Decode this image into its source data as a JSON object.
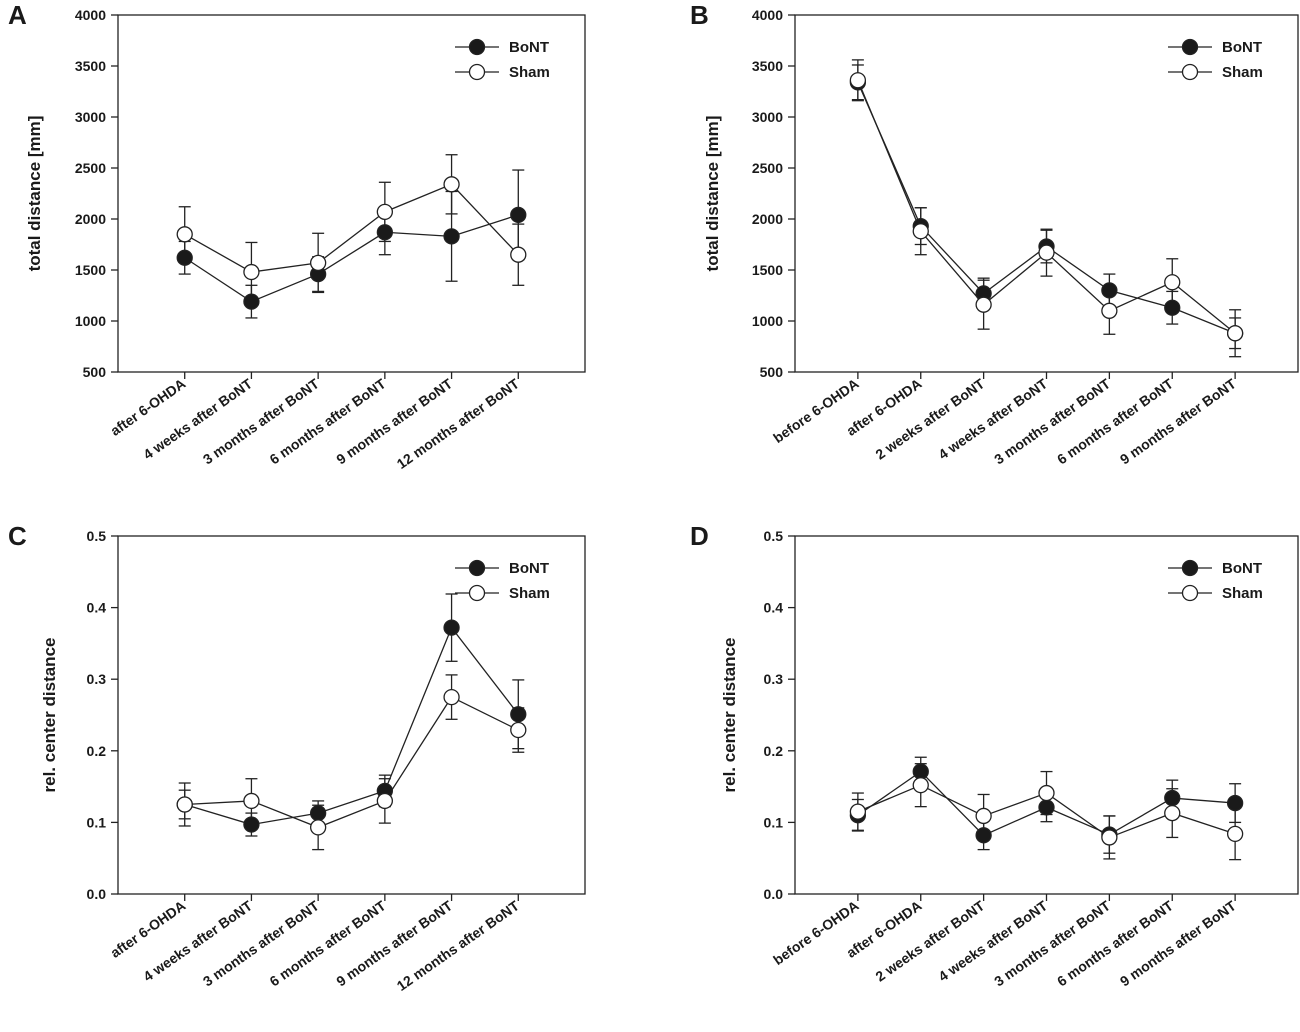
{
  "chart_data": [
    {
      "panel": "A",
      "type": "line",
      "ylabel": "total distance [mm]",
      "ylim": [
        500,
        4000
      ],
      "yticks": [
        500,
        1000,
        1500,
        2000,
        2500,
        3000,
        3500,
        4000
      ],
      "categories": [
        "after 6-OHDA",
        "4 weeks after BoNT",
        "3 months after BoNT",
        "6 months after BoNT",
        "9 months after BoNT",
        "12 months after BoNT"
      ],
      "series": [
        {
          "name": "BoNT",
          "marker": "filled",
          "values": [
            1620,
            1190,
            1460,
            1870,
            1830,
            2040
          ],
          "errors": [
            160,
            160,
            170,
            220,
            440,
            440
          ]
        },
        {
          "name": "Sham",
          "marker": "open",
          "values": [
            1850,
            1480,
            1570,
            2070,
            2340,
            1650
          ],
          "errors": [
            270,
            290,
            290,
            290,
            290,
            300
          ]
        }
      ],
      "legend": "top-right"
    },
    {
      "panel": "B",
      "type": "line",
      "ylabel": "total distance [mm]",
      "ylim": [
        500,
        4000
      ],
      "yticks": [
        500,
        1000,
        1500,
        2000,
        2500,
        3000,
        3500,
        4000
      ],
      "categories": [
        "before 6-OHDA",
        "after 6-OHDA",
        "2 weeks after BoNT",
        "4 weeks after BoNT",
        "3 months after BoNT",
        "6 months after BoNT",
        "9 months after BoNT"
      ],
      "series": [
        {
          "name": "BoNT",
          "marker": "filled",
          "values": [
            3340,
            1930,
            1270,
            1730,
            1300,
            1130,
            880
          ],
          "errors": [
            170,
            180,
            150,
            160,
            160,
            160,
            150
          ]
        },
        {
          "name": "Sham",
          "marker": "open",
          "values": [
            3360,
            1880,
            1160,
            1670,
            1100,
            1380,
            880
          ],
          "errors": [
            200,
            230,
            240,
            230,
            230,
            230,
            230
          ]
        }
      ],
      "legend": "top-right"
    },
    {
      "panel": "C",
      "type": "line",
      "ylabel": "rel. center distance",
      "ylim": [
        0.0,
        0.5
      ],
      "yticks": [
        0.0,
        0.1,
        0.2,
        0.3,
        0.4,
        0.5
      ],
      "categories": [
        "after 6-OHDA",
        "4 weeks after BoNT",
        "3 months after BoNT",
        "6 months after BoNT",
        "9 months after BoNT",
        "12 months after BoNT"
      ],
      "series": [
        {
          "name": "BoNT",
          "marker": "filled",
          "values": [
            0.125,
            0.097,
            0.113,
            0.144,
            0.372,
            0.251
          ],
          "errors": [
            0.02,
            0.016,
            0.017,
            0.022,
            0.047,
            0.048
          ]
        },
        {
          "name": "Sham",
          "marker": "open",
          "values": [
            0.125,
            0.13,
            0.093,
            0.13,
            0.275,
            0.229
          ],
          "errors": [
            0.03,
            0.031,
            0.031,
            0.031,
            0.031,
            0.031
          ]
        }
      ],
      "legend": "top-right"
    },
    {
      "panel": "D",
      "type": "line",
      "ylabel": "rel. center distance",
      "ylim": [
        0.0,
        0.5
      ],
      "yticks": [
        0.0,
        0.1,
        0.2,
        0.3,
        0.4,
        0.5
      ],
      "categories": [
        "before 6-OHDA",
        "after 6-OHDA",
        "2 weeks after BoNT",
        "4 weeks after BoNT",
        "3 months after BoNT",
        "6 months after BoNT",
        "9 months after BoNT"
      ],
      "series": [
        {
          "name": "BoNT",
          "marker": "filled",
          "values": [
            0.11,
            0.171,
            0.082,
            0.121,
            0.083,
            0.134,
            0.127
          ],
          "errors": [
            0.022,
            0.02,
            0.02,
            0.02,
            0.026,
            0.025,
            0.027
          ]
        },
        {
          "name": "Sham",
          "marker": "open",
          "values": [
            0.115,
            0.152,
            0.109,
            0.141,
            0.079,
            0.113,
            0.084
          ],
          "errors": [
            0.026,
            0.03,
            0.03,
            0.03,
            0.03,
            0.034,
            0.036
          ]
        }
      ],
      "legend": "top-right"
    }
  ],
  "colors": {
    "line": "#222222",
    "filled_marker": "#1a1a1a",
    "open_marker": "#ffffff"
  }
}
